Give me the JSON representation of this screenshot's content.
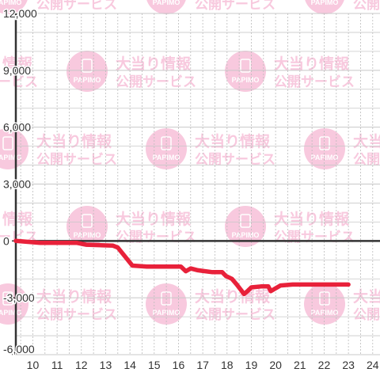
{
  "watermark": {
    "line1": "大当り情報",
    "line2": "公開サービス",
    "brand": "PAPIMO"
  },
  "chart_data": {
    "type": "line",
    "title": "",
    "xlabel": "",
    "ylabel": "",
    "xlim": [
      9.3,
      24.3
    ],
    "ylim": [
      -6000,
      12000
    ],
    "grid": true,
    "x_ticks": [
      10,
      11,
      12,
      13,
      14,
      15,
      16,
      17,
      18,
      19,
      20,
      21,
      22,
      23,
      24
    ],
    "y_ticks": [
      -6000,
      -3000,
      0,
      3000,
      6000,
      9000,
      12000
    ],
    "y_tick_labels": [
      "-6,000",
      "-3,000",
      "0",
      "3,000",
      "6,000",
      "9,000",
      "12,000"
    ],
    "colors": {
      "series": "#e8213a",
      "axis": "#333333",
      "grid_major": "#c8c8c8",
      "grid_minor": "#bbbbbb",
      "watermark": "#f7c0d9"
    },
    "series": [
      {
        "x": [
          9.3,
          10.3,
          11.3,
          11.8,
          12.2,
          13.3,
          13.5,
          14.1,
          14.7,
          15.5,
          16.1,
          16.3,
          16.5,
          16.8,
          17.4,
          17.8,
          17.95,
          18.2,
          18.4,
          18.7,
          18.8,
          19.0,
          19.4,
          19.7,
          19.8,
          20.2,
          20.7,
          23.0
        ],
        "y": [
          0,
          -100,
          -100,
          -100,
          -200,
          -250,
          -350,
          -1300,
          -1350,
          -1350,
          -1350,
          -1600,
          -1450,
          -1550,
          -1650,
          -1650,
          -1850,
          -2000,
          -2300,
          -2800,
          -2700,
          -2450,
          -2400,
          -2400,
          -2650,
          -2350,
          -2300,
          -2300
        ]
      }
    ]
  }
}
